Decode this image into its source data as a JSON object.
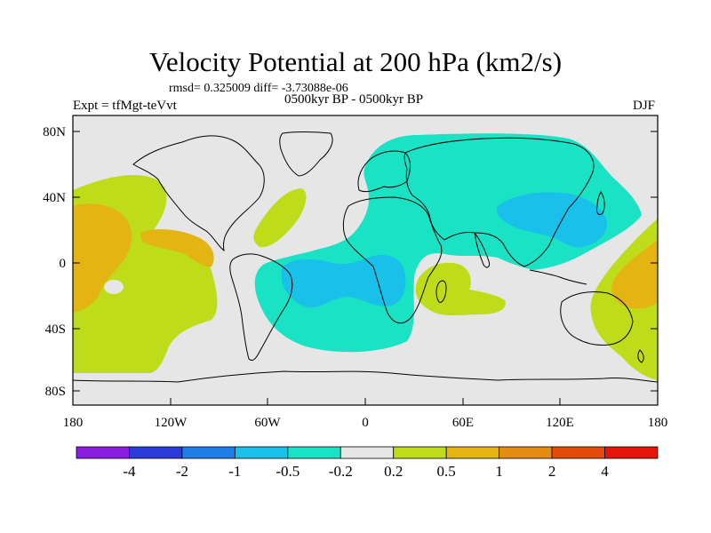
{
  "title": "Velocity Potential at 200 hPa (km2/s)",
  "stats": "rmsd= 0.325009 diff= -3.73088e-06",
  "experiment": "Expt = tfMgt-teVvt",
  "period": "0500kyr BP - 0500kyr BP",
  "season": "DJF",
  "y_ticks": [
    "80N",
    "40N",
    "0",
    "40S",
    "80S"
  ],
  "x_ticks": [
    "180",
    "120W",
    "60W",
    "0",
    "60E",
    "120E",
    "180"
  ],
  "colorbar": {
    "colors": [
      "#8a1ee0",
      "#2a3bd8",
      "#1e7ee6",
      "#19c0ea",
      "#19e3c4",
      "#e6e6e6",
      "#bfdc1a",
      "#e4b412",
      "#e48c14",
      "#e44c0c",
      "#e6140a"
    ],
    "labels": [
      "-4",
      "-2",
      "-1",
      "-0.5",
      "-0.2",
      "0.2",
      "0.5",
      "1",
      "2",
      "4"
    ]
  },
  "field_colors": {
    "background": "#e6e6e6",
    "weak_pos": "#bfdc1a",
    "mod_pos": "#e4b412",
    "weak_neg": "#19e3c4",
    "mod_neg": "#19c0ea"
  }
}
